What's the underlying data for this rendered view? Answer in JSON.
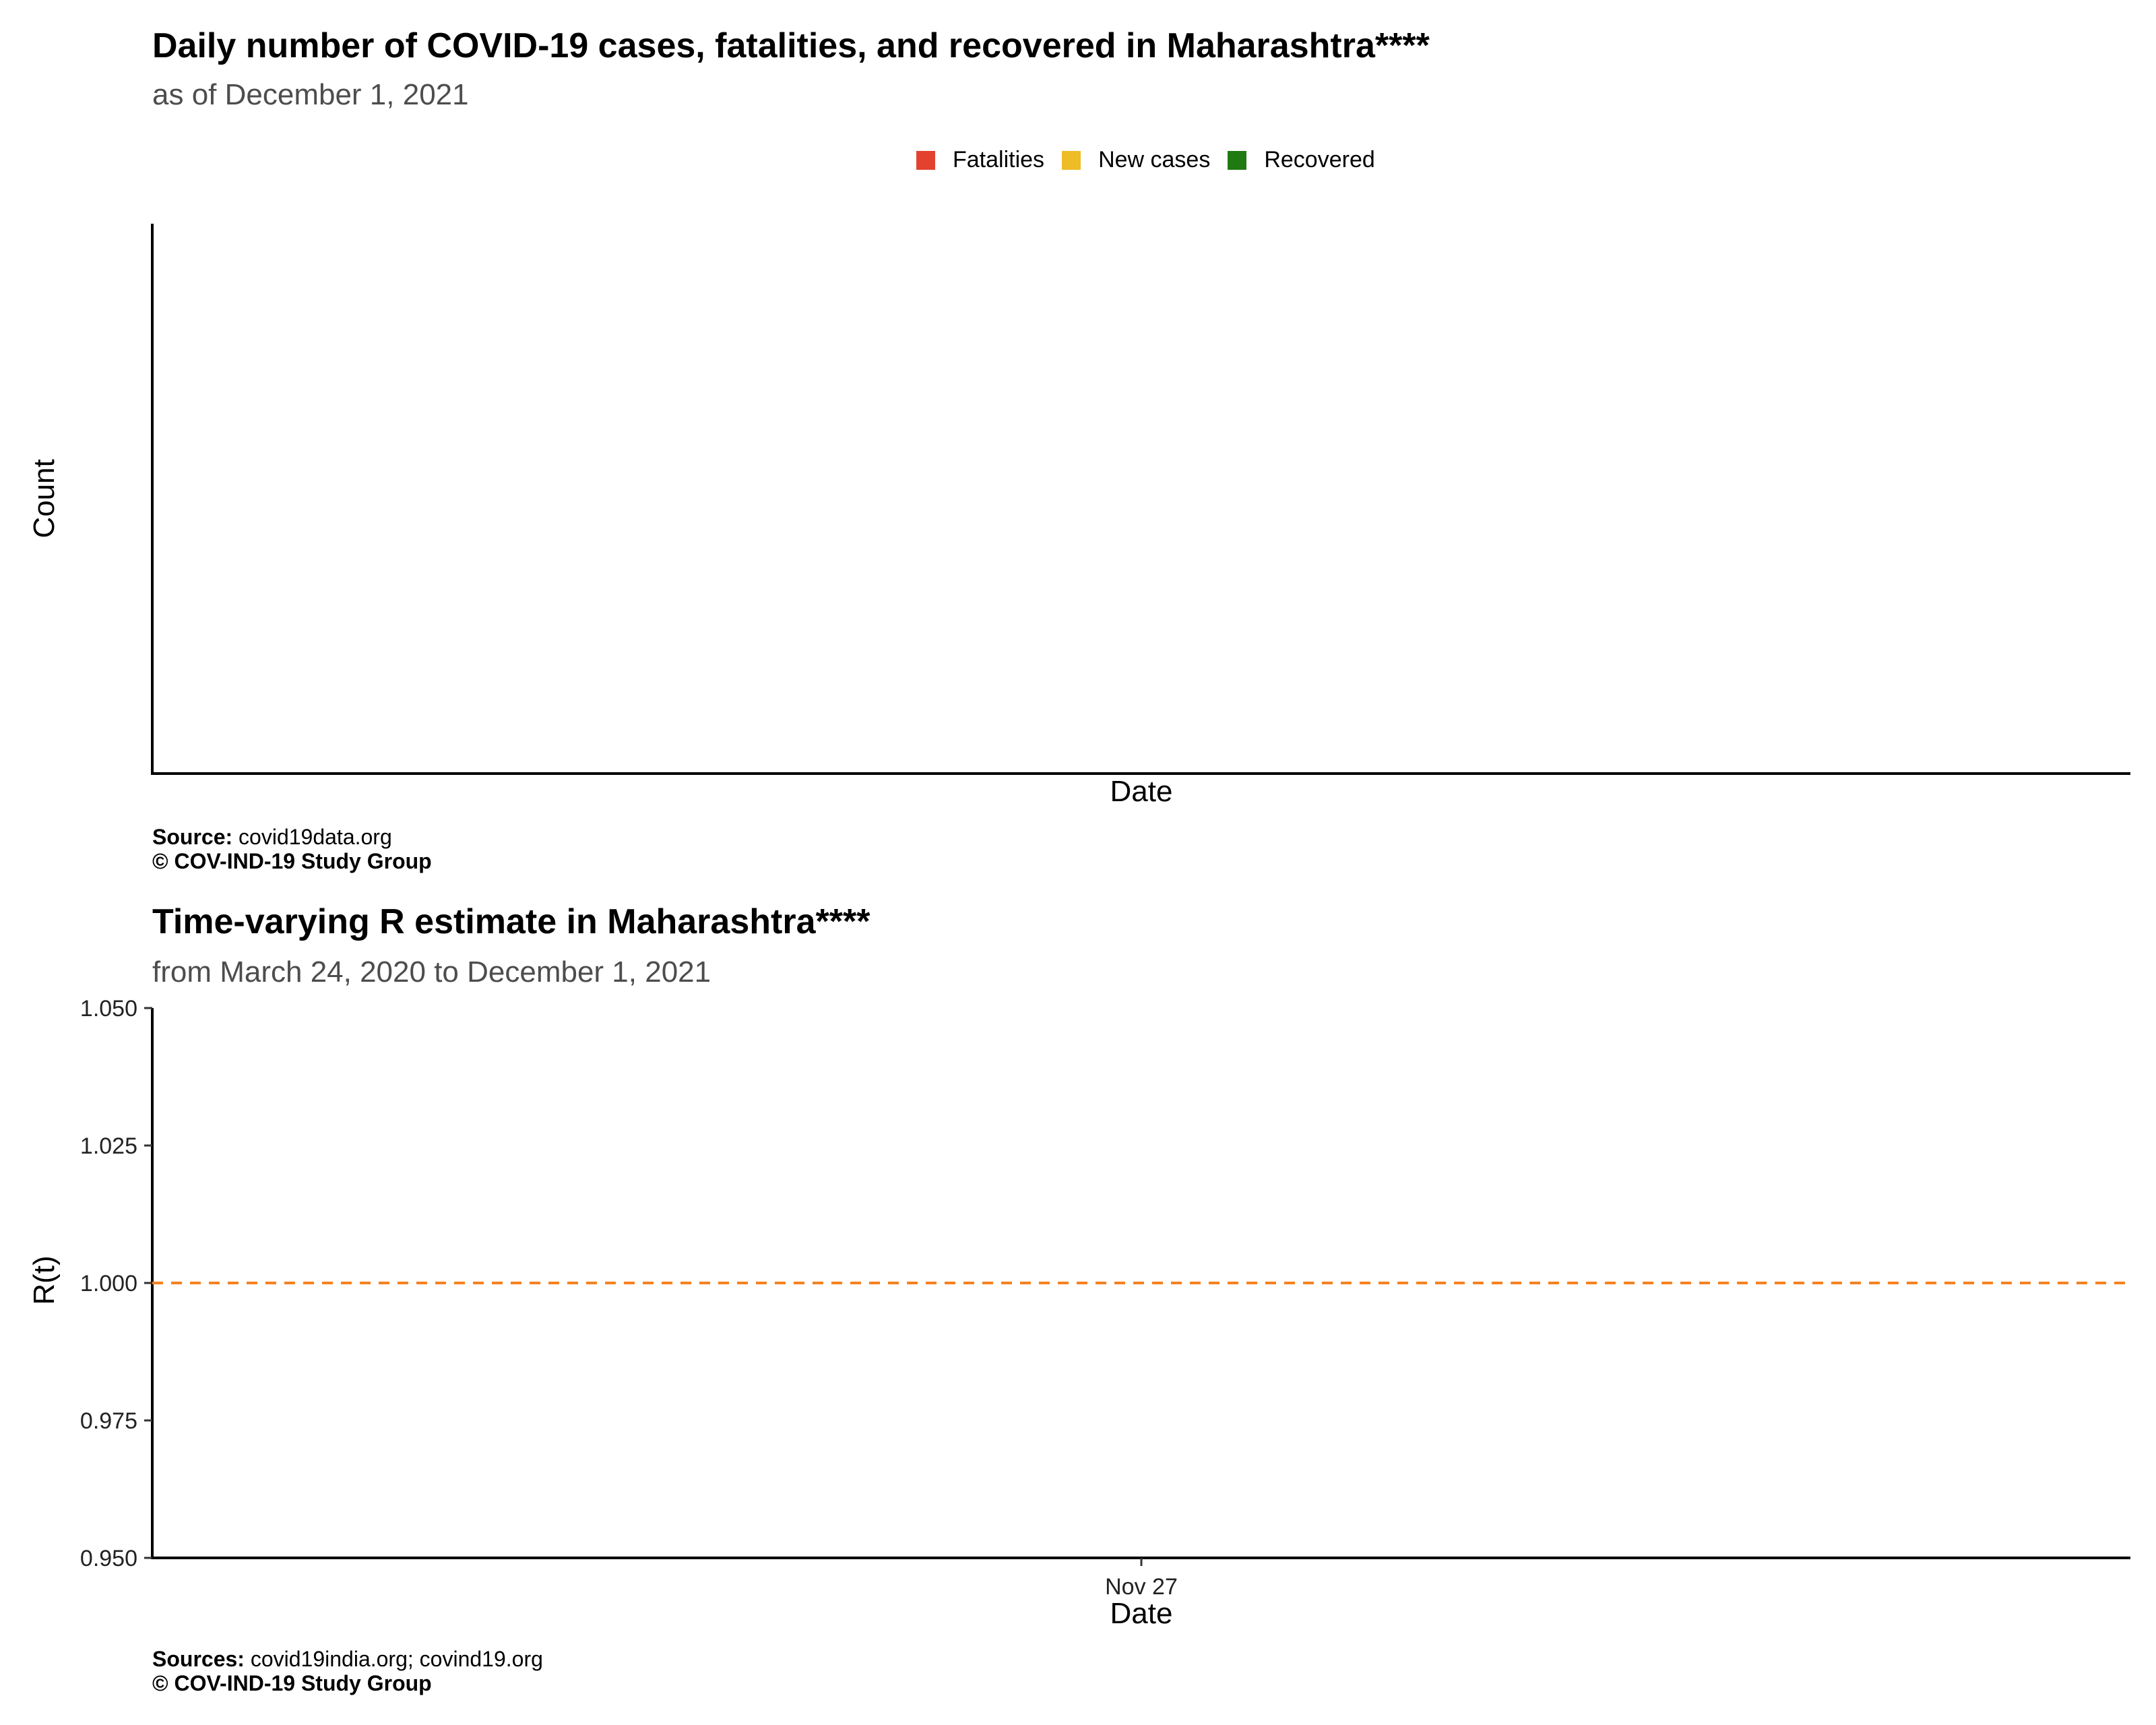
{
  "chart_data": [
    {
      "type": "bar",
      "title": "Daily number of COVID-19 cases, fatalities, and recovered in Maharashtra****",
      "subtitle": "as of December  1, 2021",
      "xlabel": "Date",
      "ylabel": "Count",
      "legend_position": "top",
      "series": [
        {
          "name": "Fatalities",
          "color": "#e3422f",
          "values": []
        },
        {
          "name": "New cases",
          "color": "#eebc27",
          "values": []
        },
        {
          "name": "Recovered",
          "color": "#1f7a12",
          "values": []
        }
      ],
      "categories": [],
      "grid": false,
      "caption": {
        "source_label": "Source:",
        "source_text": " covid19data.org",
        "copyright": "© COV-IND-19 Study Group"
      }
    },
    {
      "type": "line",
      "title": "Time-varying R estimate in Maharashtra****",
      "subtitle": "from March 24, 2020 to December  1, 2021",
      "xlabel": "Date",
      "ylabel": "R(t)",
      "ylim": [
        0.95,
        1.05
      ],
      "yticks": [
        "1.050",
        "1.025",
        "1.000",
        "0.975",
        "0.950"
      ],
      "xticks": [
        "Nov 27"
      ],
      "reference_line": {
        "y": 1.0,
        "color": "#f58220",
        "style": "dashed"
      },
      "series": [],
      "grid": false,
      "caption": {
        "source_label": "Sources:",
        "source_text": " covid19india.org; covind19.org",
        "copyright": "© COV-IND-19 Study Group"
      }
    }
  ]
}
